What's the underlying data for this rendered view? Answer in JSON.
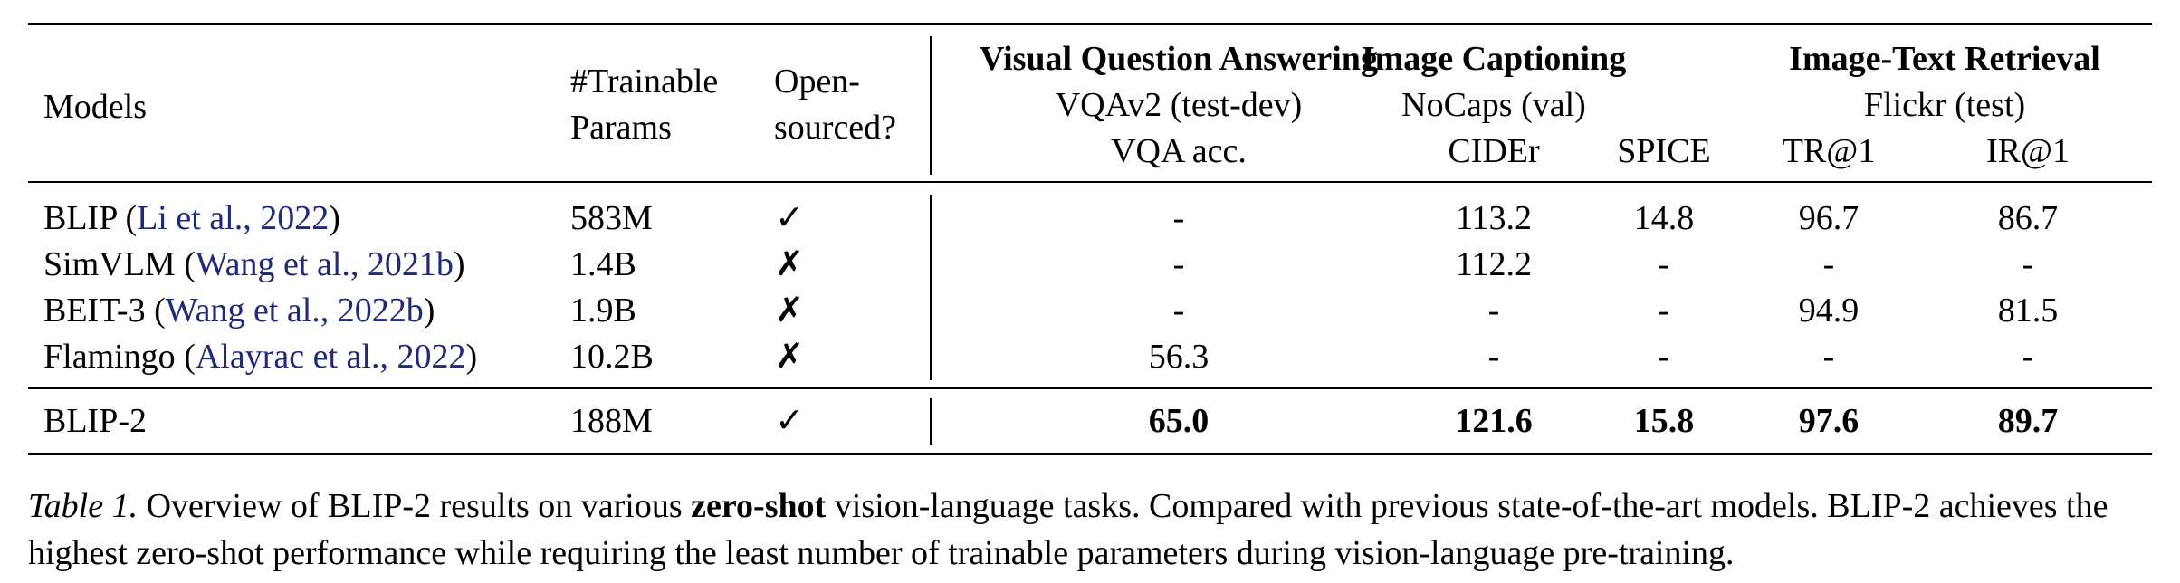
{
  "table": {
    "headers": {
      "models": "Models",
      "params_line1": "#Trainable",
      "params_line2": "Params",
      "open_line1": "Open-",
      "open_line2": "sourced?",
      "groups": [
        {
          "title": "Visual Question Answering",
          "dataset": "VQAv2 (test-dev)",
          "metrics": [
            "VQA acc."
          ]
        },
        {
          "title": "Image Captioning",
          "dataset": "NoCaps (val)",
          "metrics": [
            "CIDEr",
            "SPICE"
          ]
        },
        {
          "title": "Image-Text Retrieval",
          "dataset": "Flickr (test)",
          "metrics": [
            "TR@1",
            "IR@1"
          ]
        }
      ]
    },
    "rows": [
      {
        "model": "BLIP",
        "cite": "Li et al., 2022",
        "params": "583M",
        "open": "✓",
        "vqa": "-",
        "cider": "113.2",
        "spice": "14.8",
        "tr1": "96.7",
        "ir1": "86.7"
      },
      {
        "model": "SimVLM",
        "cite": "Wang et al., 2021b",
        "params": "1.4B",
        "open": "✗",
        "vqa": "-",
        "cider": "112.2",
        "spice": "-",
        "tr1": "-",
        "ir1": "-"
      },
      {
        "model": "BEIT-3",
        "cite": "Wang et al., 2022b",
        "params": "1.9B",
        "open": "✗",
        "vqa": "-",
        "cider": "-",
        "spice": "-",
        "tr1": "94.9",
        "ir1": "81.5"
      },
      {
        "model": "Flamingo",
        "cite": "Alayrac et al., 2022",
        "params": "10.2B",
        "open": "✗",
        "vqa": "56.3",
        "cider": "-",
        "spice": "-",
        "tr1": "-",
        "ir1": "-"
      }
    ],
    "final_row": {
      "model": "BLIP-2",
      "params": "188M",
      "open": "✓",
      "vqa": "65.0",
      "cider": "121.6",
      "spice": "15.8",
      "tr1": "97.6",
      "ir1": "89.7"
    }
  },
  "caption": {
    "label": "Table 1.",
    "text_before": "Overview of BLIP-2 results on various",
    "bold": "zero-shot",
    "text_after": "vision-language tasks. Compared with previous state-of-the-art models. BLIP-2 achieves the highest zero-shot performance while requiring the least number of trainable parameters during vision-language pre-training."
  }
}
